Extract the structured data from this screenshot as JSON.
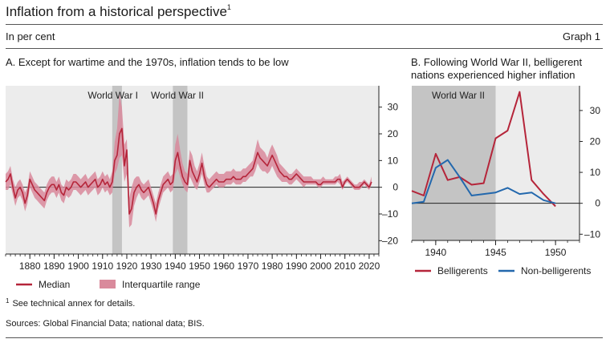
{
  "header": {
    "title": "Inflation from a historical perspective",
    "title_note": "1",
    "unit": "In per cent",
    "graph_label": "Graph 1"
  },
  "footer": {
    "footnote_mark": "1",
    "footnote": "See technical annex for details.",
    "sources": "Sources: Global Financial Data; national data; BIS."
  },
  "colors": {
    "median": "#b5253a",
    "iqr": "#d98a9c",
    "nonbelligerent": "#2368ad",
    "plot_bg": "#ececec",
    "war_band": "#c4c4c4"
  },
  "chart_data": [
    {
      "type": "line",
      "title": "A. Except for wartime and the 1970s, inflation tends to be low",
      "xlim": [
        1870,
        2024
      ],
      "ylim": [
        -25,
        38
      ],
      "xticks": [
        1880,
        1890,
        1900,
        1910,
        1920,
        1930,
        1940,
        1950,
        1960,
        1970,
        1980,
        1990,
        2000,
        2010,
        2020
      ],
      "yticks": [
        -20,
        -10,
        0,
        10,
        20,
        30
      ],
      "bands": [
        {
          "label": "World War I",
          "start": 1914,
          "end": 1918
        },
        {
          "label": "World War II",
          "start": 1939,
          "end": 1945
        }
      ],
      "legend": [
        {
          "label": "Median",
          "kind": "line"
        },
        {
          "label": "Interquartile range",
          "kind": "area"
        }
      ],
      "x": [
        1870,
        1871,
        1872,
        1873,
        1874,
        1875,
        1876,
        1877,
        1878,
        1879,
        1880,
        1881,
        1882,
        1883,
        1884,
        1885,
        1886,
        1887,
        1888,
        1889,
        1890,
        1891,
        1892,
        1893,
        1894,
        1895,
        1896,
        1897,
        1898,
        1899,
        1900,
        1901,
        1902,
        1903,
        1904,
        1905,
        1906,
        1907,
        1908,
        1909,
        1910,
        1911,
        1912,
        1913,
        1914,
        1915,
        1916,
        1917,
        1918,
        1919,
        1920,
        1921,
        1922,
        1923,
        1924,
        1925,
        1926,
        1927,
        1928,
        1929,
        1930,
        1931,
        1932,
        1933,
        1934,
        1935,
        1936,
        1937,
        1938,
        1939,
        1940,
        1941,
        1942,
        1943,
        1944,
        1945,
        1946,
        1947,
        1948,
        1949,
        1950,
        1951,
        1952,
        1953,
        1954,
        1955,
        1956,
        1957,
        1958,
        1959,
        1960,
        1961,
        1962,
        1963,
        1964,
        1965,
        1966,
        1967,
        1968,
        1969,
        1970,
        1971,
        1972,
        1973,
        1974,
        1975,
        1976,
        1977,
        1978,
        1979,
        1980,
        1981,
        1982,
        1983,
        1984,
        1985,
        1986,
        1987,
        1988,
        1989,
        1990,
        1991,
        1992,
        1993,
        1994,
        1995,
        1996,
        1997,
        1998,
        1999,
        2000,
        2001,
        2002,
        2003,
        2004,
        2005,
        2006,
        2007,
        2008,
        2009,
        2010,
        2011,
        2012,
        2013,
        2014,
        2015,
        2016,
        2017,
        2018,
        2019,
        2020,
        2021
      ],
      "series": [
        {
          "name": "Median",
          "values": [
            2,
            3,
            5,
            0,
            -4,
            -1,
            0,
            -2,
            -6,
            -3,
            3,
            1,
            -1,
            -2,
            -3,
            -4,
            -5,
            -2,
            0,
            1,
            1,
            -1,
            1,
            -2,
            -3,
            0,
            -1,
            0,
            2,
            2,
            1,
            0,
            1,
            2,
            0,
            1,
            2,
            3,
            0,
            1,
            3,
            1,
            2,
            0,
            2,
            10,
            12,
            20,
            22,
            8,
            14,
            -10,
            -8,
            -2,
            0,
            1,
            -1,
            -2,
            -1,
            0,
            -3,
            -6,
            -10,
            -5,
            -2,
            1,
            2,
            3,
            1,
            2,
            10,
            13,
            8,
            4,
            2,
            1,
            10,
            6,
            4,
            2,
            5,
            9,
            4,
            1,
            0,
            1,
            2,
            3,
            2,
            2,
            2,
            3,
            3,
            3,
            4,
            3,
            3,
            3,
            4,
            4,
            5,
            6,
            7,
            10,
            13,
            11,
            10,
            9,
            8,
            10,
            12,
            10,
            8,
            6,
            5,
            4,
            4,
            3,
            3,
            4,
            5,
            4,
            3,
            2,
            2,
            2,
            2,
            2,
            2,
            1,
            1,
            2,
            2,
            2,
            2,
            2,
            2,
            3,
            3,
            0,
            2,
            3,
            2,
            1,
            0,
            0,
            0,
            1,
            2,
            1,
            0,
            2
          ]
        },
        {
          "name": "IQR low",
          "values": [
            -1,
            -1,
            1,
            -3,
            -7,
            -4,
            -3,
            -5,
            -9,
            -6,
            0,
            -2,
            -4,
            -5,
            -6,
            -7,
            -8,
            -5,
            -3,
            -2,
            -2,
            -4,
            -2,
            -5,
            -6,
            -3,
            -4,
            -3,
            -1,
            -1,
            -2,
            -3,
            -2,
            -1,
            -3,
            -2,
            -1,
            0,
            -3,
            -2,
            0,
            -2,
            -1,
            -3,
            -2,
            5,
            7,
            11,
            12,
            2,
            5,
            -15,
            -14,
            -7,
            -4,
            -2,
            -4,
            -5,
            -4,
            -3,
            -6,
            -9,
            -13,
            -8,
            -5,
            -2,
            -1,
            0,
            -2,
            -1,
            5,
            7,
            4,
            1,
            -1,
            -2,
            4,
            2,
            0,
            -1,
            2,
            5,
            1,
            -2,
            -2,
            -1,
            0,
            1,
            0,
            0,
            0,
            1,
            1,
            1,
            2,
            1,
            1,
            1,
            2,
            2,
            3,
            4,
            4,
            6,
            9,
            7,
            6,
            6,
            5,
            6,
            8,
            6,
            4,
            3,
            2,
            2,
            2,
            1,
            1,
            2,
            3,
            2,
            1,
            0,
            1,
            1,
            1,
            1,
            1,
            0,
            0,
            1,
            1,
            1,
            1,
            1,
            1,
            2,
            1,
            -1,
            1,
            2,
            1,
            0,
            -1,
            -1,
            -1,
            0,
            1,
            0,
            -1,
            1
          ]
        },
        {
          "name": "IQR high",
          "values": [
            5,
            6,
            8,
            3,
            0,
            2,
            3,
            1,
            -2,
            0,
            6,
            4,
            2,
            1,
            0,
            -1,
            -2,
            1,
            3,
            4,
            4,
            2,
            4,
            1,
            0,
            3,
            2,
            3,
            5,
            5,
            4,
            3,
            4,
            5,
            3,
            4,
            5,
            6,
            3,
            4,
            6,
            4,
            5,
            3,
            6,
            17,
            22,
            35,
            30,
            16,
            18,
            -4,
            0,
            3,
            4,
            4,
            2,
            1,
            2,
            3,
            0,
            -3,
            -6,
            -2,
            1,
            4,
            5,
            6,
            4,
            5,
            16,
            20,
            14,
            9,
            6,
            5,
            14,
            12,
            8,
            6,
            9,
            13,
            8,
            4,
            3,
            4,
            5,
            6,
            5,
            5,
            5,
            6,
            6,
            6,
            7,
            6,
            6,
            6,
            7,
            7,
            8,
            9,
            10,
            14,
            18,
            15,
            14,
            13,
            11,
            14,
            16,
            14,
            12,
            9,
            8,
            7,
            6,
            5,
            5,
            6,
            7,
            6,
            5,
            4,
            4,
            4,
            4,
            3,
            3,
            3,
            3,
            4,
            3,
            3,
            3,
            3,
            4,
            4,
            5,
            2,
            3,
            4,
            3,
            2,
            1,
            1,
            2,
            2,
            3,
            2,
            1,
            4
          ]
        }
      ]
    },
    {
      "type": "line",
      "title": "B. Following World War II, belligerent nations experienced higher inflation",
      "xlim": [
        1938,
        1952
      ],
      "ylim": [
        -12,
        38
      ],
      "xticks": [
        1940,
        1945,
        1950
      ],
      "yticks": [
        -10,
        0,
        10,
        20,
        30
      ],
      "bands": [
        {
          "label": "World War II",
          "start": 1938,
          "end": 1945
        }
      ],
      "x": [
        1938,
        1939,
        1940,
        1941,
        1942,
        1943,
        1944,
        1945,
        1946,
        1947,
        1948,
        1949,
        1950
      ],
      "series": [
        {
          "name": "Belligerents",
          "values": [
            4,
            2.5,
            16,
            7.5,
            8.5,
            6,
            6.5,
            21,
            23.5,
            36,
            7.5,
            3,
            -1
          ]
        },
        {
          "name": "Non-belligerents",
          "values": [
            0,
            0.5,
            11.5,
            14,
            8.5,
            2.5,
            3,
            3.5,
            5,
            3,
            3.5,
            1,
            0
          ]
        }
      ]
    }
  ]
}
